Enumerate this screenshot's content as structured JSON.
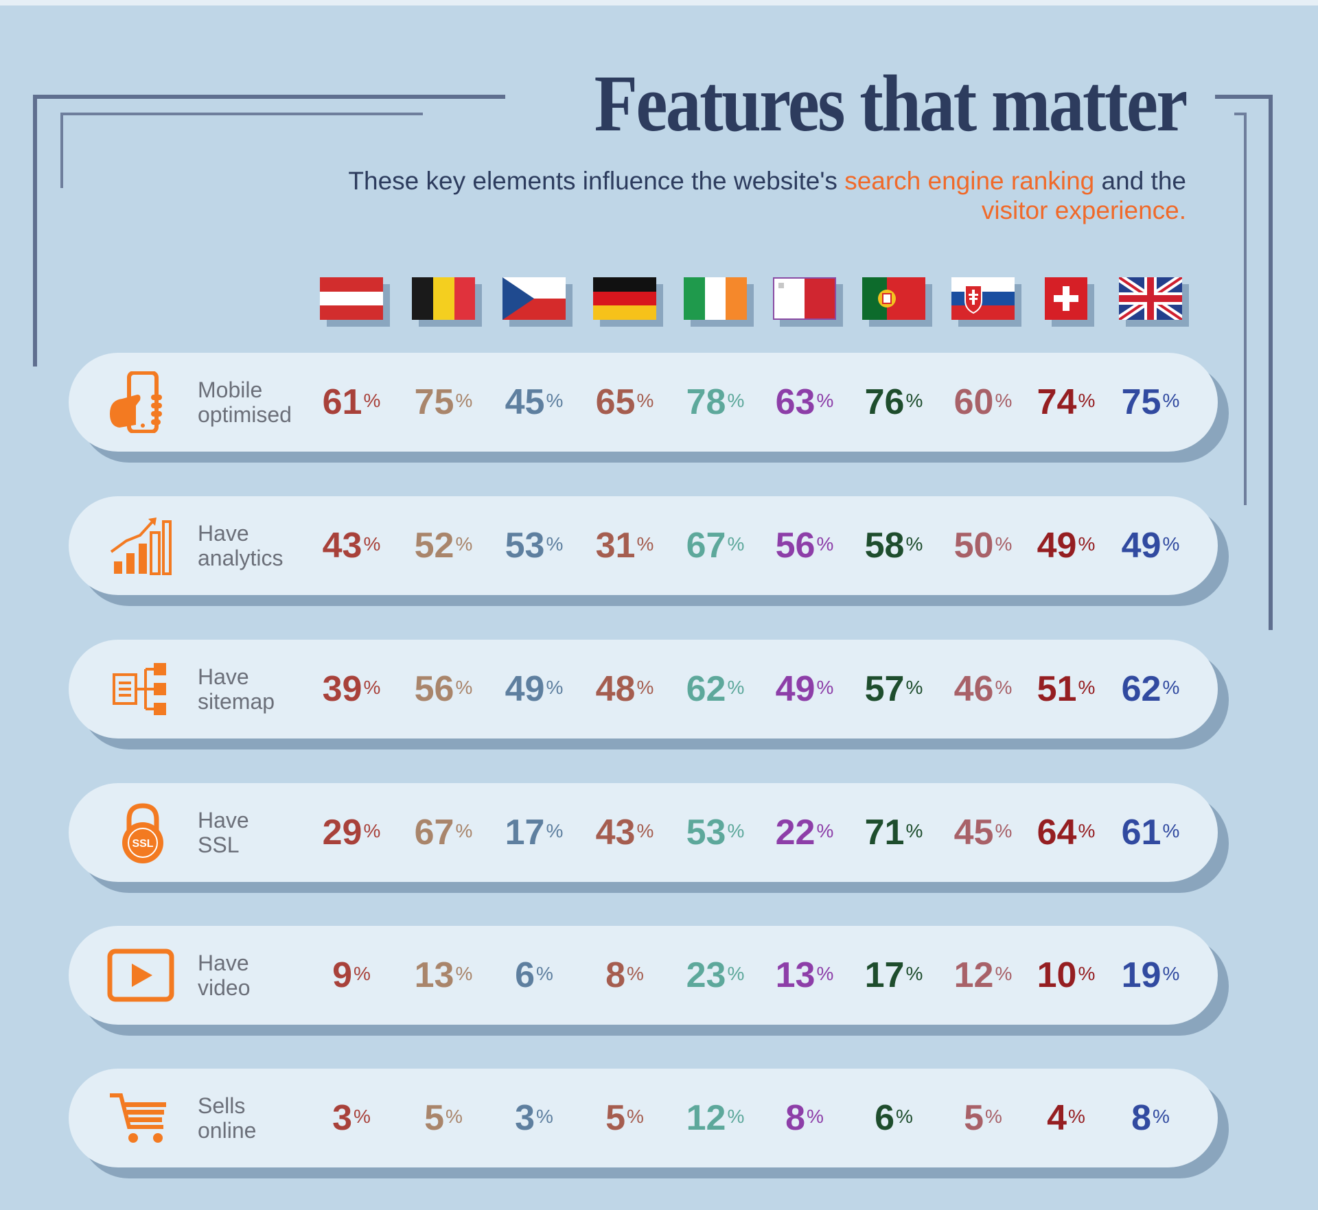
{
  "title": "Features that matter",
  "subtitle": {
    "part1": "These key elements influence the website's ",
    "highlight1": "search engine ranking",
    "part2": " and the",
    "highlight2": "visitor experience."
  },
  "colors": {
    "background": "#bfd6e7",
    "title": "#2d3c5e",
    "highlight": "#f06a2a",
    "pill": "#e3eef6",
    "icon": "#f37a21",
    "label": "#6b6f79"
  },
  "countries": [
    {
      "flag": "austria-flag",
      "color": "#a8413a"
    },
    {
      "flag": "belgium-flag",
      "color": "#a9856b"
    },
    {
      "flag": "czech-flag",
      "color": "#5e7f9f"
    },
    {
      "flag": "germany-flag",
      "color": "#a55d4f"
    },
    {
      "flag": "ireland-flag",
      "color": "#5da89b"
    },
    {
      "flag": "malta-flag",
      "color": "#8d3ea8"
    },
    {
      "flag": "portugal-flag",
      "color": "#1e4d2d"
    },
    {
      "flag": "slovakia-flag",
      "color": "#a86168"
    },
    {
      "flag": "switzerland-flag",
      "color": "#951e21"
    },
    {
      "flag": "uk-flag",
      "color": "#314aa0"
    }
  ],
  "chart_data": {
    "type": "table",
    "unit": "%",
    "rows": [
      {
        "label": [
          "Mobile",
          "optimised"
        ],
        "icon": "smartphone-hand-icon",
        "values": [
          61,
          75,
          45,
          65,
          78,
          63,
          76,
          60,
          74,
          75
        ]
      },
      {
        "label": [
          "Have",
          "analytics"
        ],
        "icon": "bar-chart-icon",
        "values": [
          43,
          52,
          53,
          31,
          67,
          56,
          58,
          50,
          49,
          49
        ]
      },
      {
        "label": [
          "Have",
          "sitemap"
        ],
        "icon": "sitemap-icon",
        "values": [
          39,
          56,
          49,
          48,
          62,
          49,
          57,
          46,
          51,
          62
        ]
      },
      {
        "label": [
          "Have",
          "SSL"
        ],
        "icon": "padlock-ssl-icon",
        "values": [
          29,
          67,
          17,
          43,
          53,
          22,
          71,
          45,
          64,
          61
        ]
      },
      {
        "label": [
          "Have",
          "video"
        ],
        "icon": "video-play-icon",
        "values": [
          9,
          13,
          6,
          8,
          23,
          13,
          17,
          12,
          10,
          19
        ]
      },
      {
        "label": [
          "Sells",
          "online"
        ],
        "icon": "shopping-cart-icon",
        "values": [
          3,
          5,
          3,
          5,
          12,
          8,
          6,
          5,
          4,
          8
        ]
      }
    ]
  },
  "ssl_icon_text": "SSL"
}
